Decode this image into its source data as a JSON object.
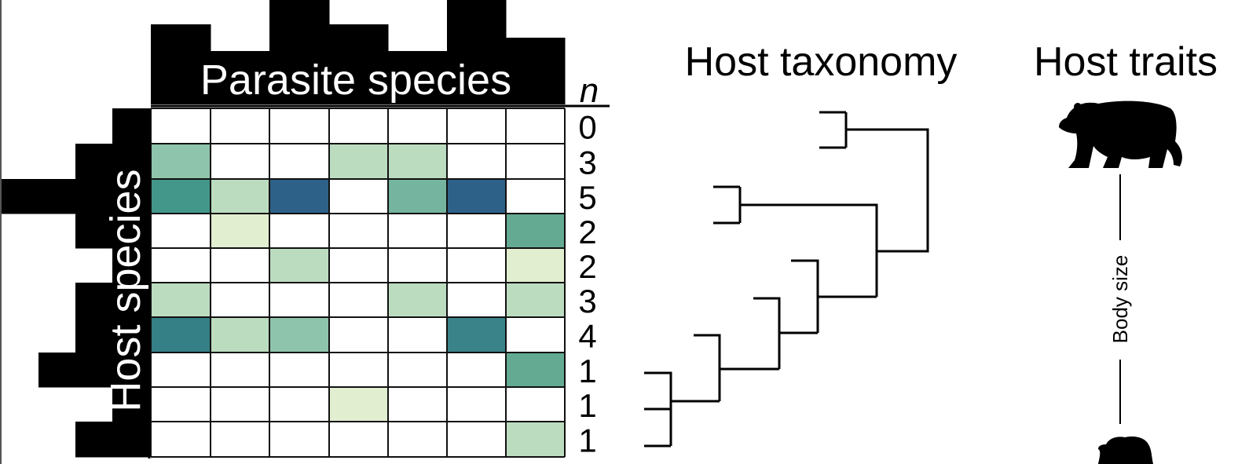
{
  "labels": {
    "parasite_species": "Parasite species",
    "host_species": "Host species",
    "n_label": "n",
    "host_taxonomy": "Host taxonomy",
    "host_traits": "Host traits",
    "body_size": "Body size"
  },
  "colors": {
    "black": "#000000",
    "white": "#ffffff",
    "grid": "#111111"
  },
  "icons": [
    "large-bear-icon",
    "small-bear-icon"
  ],
  "chart_data": {
    "type": "heatmap",
    "row_counts": [
      0,
      3,
      5,
      2,
      2,
      3,
      4,
      1,
      1,
      1
    ],
    "cells": [
      [
        null,
        null,
        null,
        null,
        null,
        null,
        null
      ],
      [
        "#8fc4ac",
        null,
        null,
        "#bcdcc0",
        "#bcdcc0",
        null,
        null
      ],
      [
        "#43978a",
        "#bcdcc0",
        "#2e6187",
        null,
        "#75b49e",
        "#2e6187",
        null
      ],
      [
        null,
        "#e1eed0",
        null,
        null,
        null,
        null,
        "#64aa93"
      ],
      [
        null,
        null,
        "#bcdcc0",
        null,
        null,
        null,
        "#e1eed0"
      ],
      [
        "#bcdcc0",
        null,
        null,
        null,
        "#bcdcc0",
        null,
        "#bcdcc0"
      ],
      [
        "#357f87",
        "#bcdcc0",
        "#8fc4ac",
        null,
        null,
        "#3a8389",
        null
      ],
      [
        null,
        null,
        null,
        null,
        null,
        null,
        "#64aa93"
      ],
      [
        null,
        null,
        null,
        "#e1eed0",
        null,
        null,
        null
      ],
      [
        null,
        null,
        null,
        null,
        null,
        null,
        "#bcdcc0"
      ]
    ],
    "column_bar_heights": [
      3,
      2,
      4,
      3,
      2,
      4,
      2.5
    ],
    "row_bar_lengths": [
      1,
      2,
      4,
      2,
      1,
      2,
      2,
      3,
      1,
      2
    ]
  }
}
